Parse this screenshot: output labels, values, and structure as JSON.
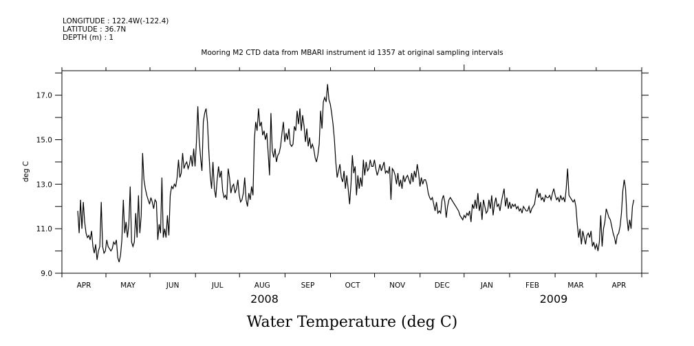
{
  "header": {
    "longitude": "LONGITUDE : 122.4W(-122.4)",
    "latitude": "LATITUDE : 36.7N",
    "depth": "DEPTH (m) : 1"
  },
  "chart_data": {
    "type": "line",
    "title": "Mooring M2 CTD data from MBARI instrument id 1357 at original sampling intervals",
    "xlabel": "Water Temperature (deg C)",
    "ylabel": "deg C",
    "ylim": [
      9.0,
      18.1
    ],
    "y_tick_labels": [
      "9.0",
      "11.0",
      "13.0",
      "15.0",
      "17.0"
    ],
    "y_major_ticks": [
      9,
      11,
      13,
      15,
      17
    ],
    "y_minor_ticks": [
      10,
      12,
      14,
      16,
      18
    ],
    "x_range_days": [
      0,
      395
    ],
    "x_origin": "2008-04-01",
    "month_ticks_days": [
      0,
      30,
      60,
      91,
      121,
      152,
      183,
      213,
      244,
      274,
      305,
      336,
      364,
      395
    ],
    "month_labels": [
      "APR",
      "MAY",
      "JUN",
      "JUL",
      "AUG",
      "SEP",
      "OCT",
      "NOV",
      "DEC",
      "JAN",
      "FEB",
      "MAR",
      "APR"
    ],
    "year_labels": [
      {
        "label": "2008",
        "day": 138
      },
      {
        "label": "2009",
        "day": 335
      }
    ],
    "series_start_day": 10.8,
    "sample_interval_days": 0.94,
    "values": [
      11.8,
      10.8,
      12.3,
      11.0,
      12.2,
      11.3,
      10.8,
      10.6,
      10.7,
      10.5,
      10.9,
      10.2,
      9.9,
      10.3,
      9.6,
      10.0,
      10.2,
      12.2,
      10.2,
      9.9,
      10.0,
      10.5,
      10.2,
      10.1,
      10.0,
      10.1,
      10.4,
      10.3,
      10.5,
      9.7,
      9.5,
      9.8,
      10.5,
      12.3,
      10.8,
      11.3,
      10.6,
      11.2,
      12.9,
      10.4,
      10.2,
      10.4,
      11.7,
      10.6,
      12.5,
      10.8,
      11.6,
      14.4,
      13.2,
      12.8,
      12.5,
      12.3,
      12.1,
      12.4,
      12.2,
      11.9,
      12.3,
      12.2,
      10.5,
      11.2,
      10.8,
      13.3,
      10.6,
      11.0,
      10.6,
      11.6,
      10.7,
      12.5,
      12.9,
      12.8,
      13.0,
      12.9,
      13.3,
      14.1,
      13.3,
      13.5,
      14.4,
      13.7,
      13.9,
      14.0,
      13.7,
      13.9,
      14.3,
      13.8,
      14.6,
      13.8,
      14.9,
      16.5,
      15.0,
      14.2,
      13.6,
      15.8,
      16.2,
      16.4,
      15.8,
      14.5,
      13.4,
      12.8,
      14.0,
      12.8,
      12.4,
      13.2,
      13.8,
      13.3,
      13.6,
      12.7,
      12.4,
      12.5,
      12.3,
      13.7,
      13.3,
      12.6,
      12.9,
      13.0,
      12.6,
      12.8,
      13.2,
      12.5,
      12.2,
      12.3,
      12.6,
      13.3,
      12.3,
      12.0,
      12.6,
      12.3,
      12.9,
      12.5,
      15.0,
      15.8,
      15.4,
      16.4,
      15.6,
      15.8,
      15.2,
      15.4,
      15.0,
      15.3,
      14.4,
      13.4,
      16.2,
      14.5,
      14.2,
      14.6,
      14.0,
      14.3,
      14.4,
      14.7,
      15.3,
      15.8,
      14.9,
      15.3,
      15.0,
      15.5,
      14.8,
      14.7,
      14.8,
      15.6,
      15.4,
      16.3,
      15.7,
      16.4,
      15.4,
      16.1,
      15.6,
      14.9,
      15.5,
      14.7,
      15.1,
      14.6,
      14.8,
      14.6,
      14.2,
      14.0,
      14.3,
      14.8,
      16.3,
      15.5,
      16.7,
      16.9,
      16.7,
      17.5,
      16.8,
      16.6,
      16.2,
      15.7,
      15.0,
      14.0,
      13.3,
      13.6,
      13.9,
      13.3,
      13.1,
      13.6,
      12.8,
      13.4,
      12.8,
      12.1,
      13.0,
      14.3,
      13.5,
      13.8,
      12.5,
      13.4,
      12.8,
      13.3,
      12.9,
      14.1,
      13.4,
      14.0,
      13.6,
      13.7,
      14.1,
      13.8,
      13.8,
      14.1,
      13.7,
      13.4,
      13.6,
      13.9,
      13.6,
      13.8,
      14.0,
      13.5,
      13.6,
      13.5,
      13.8,
      12.3,
      13.7,
      13.6,
      13.4,
      13.0,
      13.5,
      12.9,
      13.2,
      12.8,
      13.4,
      13.1,
      13.3,
      13.4,
      13.2,
      13.0,
      13.5,
      13.1,
      13.6,
      13.3,
      13.9,
      13.5,
      12.9,
      13.3,
      13.0,
      13.2,
      13.2,
      13.0,
      12.6,
      12.4,
      12.3,
      12.4,
      12.1,
      11.8,
      12.2,
      11.7,
      11.8,
      11.7,
      12.3,
      12.5,
      12.2,
      11.5,
      12.0,
      12.3,
      12.4,
      12.3,
      12.2,
      12.1,
      12.0,
      11.9,
      11.8,
      11.6,
      11.5,
      11.4,
      11.6,
      11.5,
      11.7,
      11.6,
      11.8,
      11.3,
      12.1,
      11.9,
      12.3,
      11.9,
      12.6,
      11.8,
      12.2,
      11.4,
      12.3,
      12.0,
      11.7,
      11.8,
      12.3,
      11.9,
      12.5,
      11.6,
      12.1,
      12.4,
      12.0,
      12.1,
      11.8,
      12.2,
      12.5,
      12.8,
      12.0,
      12.4,
      11.9,
      12.2,
      11.9,
      12.1,
      12.0,
      12.1,
      11.9,
      12.0,
      11.8,
      11.9,
      11.7,
      12.0,
      11.9,
      11.8,
      11.8,
      12.0,
      11.7,
      11.9,
      12.0,
      12.1,
      12.5,
      12.8,
      12.4,
      12.6,
      12.3,
      12.4,
      12.2,
      12.5,
      12.4,
      12.4,
      12.5,
      12.3,
      12.6,
      12.8,
      12.5,
      12.3,
      12.4,
      12.2,
      12.5,
      12.3,
      12.4,
      12.2,
      12.8,
      13.7,
      12.5,
      12.4,
      12.3,
      12.2,
      12.3,
      12.0,
      11.2,
      10.6,
      11.0,
      10.3,
      10.9,
      10.6,
      10.3,
      10.7,
      10.8,
      10.6,
      10.9,
      10.2,
      10.4,
      10.1,
      10.3,
      10.0,
      10.4,
      11.6,
      10.2,
      11.0,
      11.3,
      11.9,
      11.7,
      11.5,
      11.4,
      11.1,
      10.8,
      10.6,
      10.3,
      10.7,
      10.8,
      11.1,
      11.7,
      12.7,
      13.2,
      12.8,
      11.5,
      10.9,
      11.4,
      11.0,
      12.0,
      12.3
    ]
  }
}
